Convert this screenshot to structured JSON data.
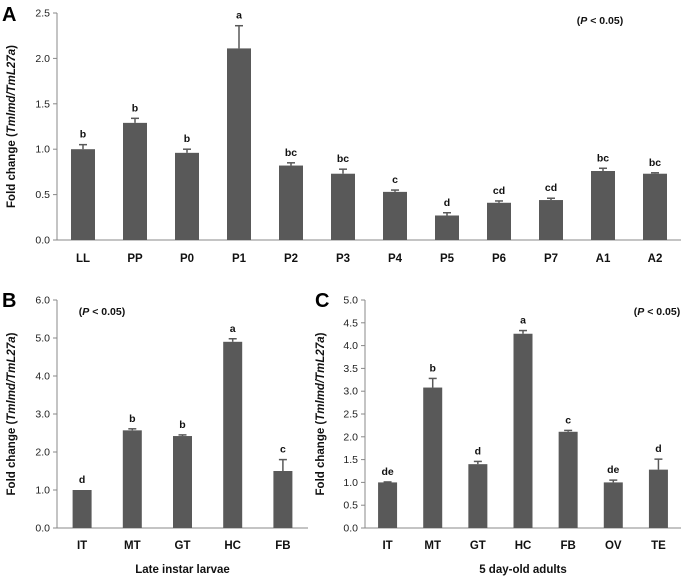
{
  "chart_data": [
    {
      "panel": "A",
      "type": "bar",
      "ylabel_prefix": "Fold change (",
      "ylabel_gene": "Tmlmd/TmL27a",
      "ylabel_suffix": ")",
      "xlabel": "",
      "note": "(P < 0.05)",
      "ylim": [
        0,
        2.5
      ],
      "ytick_step": 0.5,
      "ytick_decimals": 1,
      "categories": [
        "LL",
        "PP",
        "P0",
        "P1",
        "P2",
        "P3",
        "P4",
        "P5",
        "P6",
        "P7",
        "A1",
        "A2"
      ],
      "values": [
        1.0,
        1.29,
        0.96,
        2.11,
        0.82,
        0.73,
        0.53,
        0.27,
        0.41,
        0.44,
        0.76,
        0.73
      ],
      "errors": [
        0.05,
        0.05,
        0.04,
        0.25,
        0.03,
        0.05,
        0.02,
        0.03,
        0.02,
        0.02,
        0.03,
        0.01
      ],
      "letters": [
        "b",
        "b",
        "b",
        "a",
        "bc",
        "bc",
        "c",
        "d",
        "cd",
        "cd",
        "bc",
        "bc"
      ],
      "bar_color": "#595959"
    },
    {
      "panel": "B",
      "type": "bar",
      "ylabel_prefix": "Fold change (",
      "ylabel_gene": "Tmlmd/TmL27a",
      "ylabel_suffix": ")",
      "xlabel": "Late instar larvae",
      "note": "(P < 0.05)",
      "ylim": [
        0,
        6.0
      ],
      "ytick_step": 1.0,
      "ytick_decimals": 1,
      "categories": [
        "IT",
        "MT",
        "GT",
        "HC",
        "FB"
      ],
      "values": [
        1.0,
        2.57,
        2.42,
        4.9,
        1.5
      ],
      "errors": [
        0.0,
        0.04,
        0.03,
        0.08,
        0.3
      ],
      "letters": [
        "d",
        "b",
        "b",
        "a",
        "c"
      ],
      "bar_color": "#595959"
    },
    {
      "panel": "C",
      "type": "bar",
      "ylabel_prefix": "Fold change (",
      "ylabel_gene": "Tmlmd/TmL27a",
      "ylabel_suffix": ")",
      "xlabel": "5 day-old adults",
      "note": "(P < 0.05)",
      "ylim": [
        0,
        5.0
      ],
      "ytick_step": 0.5,
      "ytick_decimals": 1,
      "categories": [
        "IT",
        "MT",
        "GT",
        "HC",
        "FB",
        "OV",
        "TE"
      ],
      "values": [
        1.0,
        3.08,
        1.4,
        4.26,
        2.11,
        1.0,
        1.28
      ],
      "errors": [
        0.01,
        0.2,
        0.06,
        0.07,
        0.03,
        0.05,
        0.23
      ],
      "letters": [
        "de",
        "b",
        "d",
        "a",
        "c",
        "de",
        "d"
      ],
      "bar_color": "#595959"
    }
  ]
}
